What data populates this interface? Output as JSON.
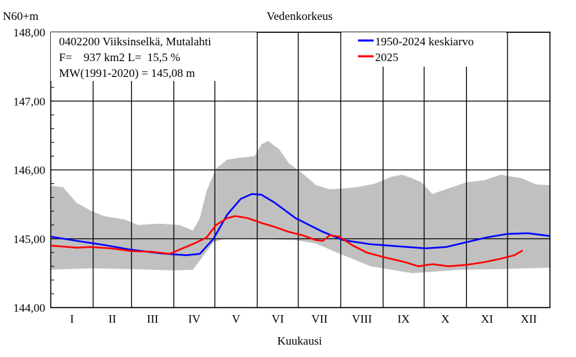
{
  "chart_data": {
    "type": "line",
    "title": "Vedenkorkeus",
    "ylabel": "N60+m",
    "xlabel": "Kuukausi",
    "ylim": [
      144.0,
      148.0
    ],
    "yticks": [
      "144,00",
      "145,00",
      "146,00",
      "147,00",
      "148,00"
    ],
    "yticks_values": [
      144,
      145,
      146,
      147,
      148
    ],
    "months": [
      "I",
      "II",
      "III",
      "IV",
      "V",
      "VI",
      "VII",
      "VIII",
      "IX",
      "X",
      "XI",
      "XII"
    ],
    "xlim": [
      1,
      366
    ],
    "info": [
      "0402200 Viiksinselkä, Mutalahti",
      "F=    937 km2 L=  15,5 %",
      "MW(1991-2020) = 145,08 m"
    ],
    "legend": [
      {
        "name": "1950-2024 keskiarvo",
        "color": "#0000ff"
      },
      {
        "name": "2025",
        "color": "#ff0000"
      }
    ],
    "colors": {
      "band": "#c0c0c0",
      "grid": "#000000",
      "mean": "#0000ff",
      "current": "#ff0000"
    },
    "series": [
      {
        "name": "1950-2024 keskiarvo",
        "color": "#0000ff",
        "points": [
          [
            1,
            145.03
          ],
          [
            20,
            144.97
          ],
          [
            40,
            144.91
          ],
          [
            60,
            144.84
          ],
          [
            80,
            144.79
          ],
          [
            100,
            144.76
          ],
          [
            110,
            144.78
          ],
          [
            120,
            145.0
          ],
          [
            130,
            145.35
          ],
          [
            140,
            145.58
          ],
          [
            148,
            145.65
          ],
          [
            155,
            145.64
          ],
          [
            165,
            145.52
          ],
          [
            180,
            145.3
          ],
          [
            200,
            145.1
          ],
          [
            215,
            144.98
          ],
          [
            235,
            144.92
          ],
          [
            255,
            144.89
          ],
          [
            275,
            144.86
          ],
          [
            290,
            144.88
          ],
          [
            305,
            144.95
          ],
          [
            320,
            145.02
          ],
          [
            335,
            145.07
          ],
          [
            350,
            145.08
          ],
          [
            366,
            145.04
          ]
        ]
      },
      {
        "name": "2025",
        "color": "#ff0000",
        "points": [
          [
            1,
            144.9
          ],
          [
            20,
            144.87
          ],
          [
            30,
            144.88
          ],
          [
            45,
            144.86
          ],
          [
            60,
            144.82
          ],
          [
            75,
            144.81
          ],
          [
            88,
            144.78
          ],
          [
            108,
            144.95
          ],
          [
            115,
            145.02
          ],
          [
            122,
            145.2
          ],
          [
            130,
            145.3
          ],
          [
            136,
            145.33
          ],
          [
            145,
            145.3
          ],
          [
            155,
            145.23
          ],
          [
            165,
            145.17
          ],
          [
            175,
            145.1
          ],
          [
            185,
            145.05
          ],
          [
            195,
            144.98
          ],
          [
            200,
            144.97
          ],
          [
            205,
            145.05
          ],
          [
            212,
            145.03
          ],
          [
            222,
            144.9
          ],
          [
            232,
            144.8
          ],
          [
            245,
            144.73
          ],
          [
            260,
            144.66
          ],
          [
            270,
            144.6
          ],
          [
            280,
            144.63
          ],
          [
            292,
            144.6
          ],
          [
            305,
            144.62
          ],
          [
            318,
            144.66
          ],
          [
            330,
            144.71
          ],
          [
            340,
            144.76
          ],
          [
            346,
            144.83
          ]
        ]
      }
    ],
    "band": {
      "name": "min-max",
      "upper": [
        [
          1,
          145.77
        ],
        [
          10,
          145.75
        ],
        [
          20,
          145.52
        ],
        [
          30,
          145.41
        ],
        [
          40,
          145.33
        ],
        [
          55,
          145.28
        ],
        [
          65,
          145.2
        ],
        [
          80,
          145.22
        ],
        [
          95,
          145.2
        ],
        [
          105,
          145.12
        ],
        [
          110,
          145.3
        ],
        [
          115,
          145.7
        ],
        [
          122,
          146.02
        ],
        [
          130,
          146.15
        ],
        [
          140,
          146.18
        ],
        [
          150,
          146.2
        ],
        [
          155,
          146.37
        ],
        [
          160,
          146.42
        ],
        [
          168,
          146.3
        ],
        [
          175,
          146.1
        ],
        [
          185,
          145.95
        ],
        [
          195,
          145.78
        ],
        [
          205,
          145.72
        ],
        [
          215,
          145.73
        ],
        [
          225,
          145.75
        ],
        [
          238,
          145.8
        ],
        [
          250,
          145.9
        ],
        [
          258,
          145.93
        ],
        [
          265,
          145.88
        ],
        [
          272,
          145.82
        ],
        [
          280,
          145.65
        ],
        [
          290,
          145.72
        ],
        [
          305,
          145.82
        ],
        [
          318,
          145.85
        ],
        [
          330,
          145.93
        ],
        [
          345,
          145.88
        ],
        [
          356,
          145.79
        ],
        [
          366,
          145.78
        ]
      ],
      "lower": [
        [
          1,
          144.55
        ],
        [
          30,
          144.57
        ],
        [
          60,
          144.56
        ],
        [
          90,
          144.54
        ],
        [
          105,
          144.55
        ],
        [
          120,
          144.95
        ],
        [
          128,
          145.0
        ],
        [
          150,
          145.0
        ],
        [
          180,
          144.98
        ],
        [
          195,
          144.93
        ],
        [
          210,
          144.8
        ],
        [
          220,
          144.72
        ],
        [
          235,
          144.6
        ],
        [
          250,
          144.55
        ],
        [
          265,
          144.5
        ],
        [
          280,
          144.52
        ],
        [
          300,
          144.55
        ],
        [
          330,
          144.56
        ],
        [
          366,
          144.58
        ]
      ]
    }
  }
}
